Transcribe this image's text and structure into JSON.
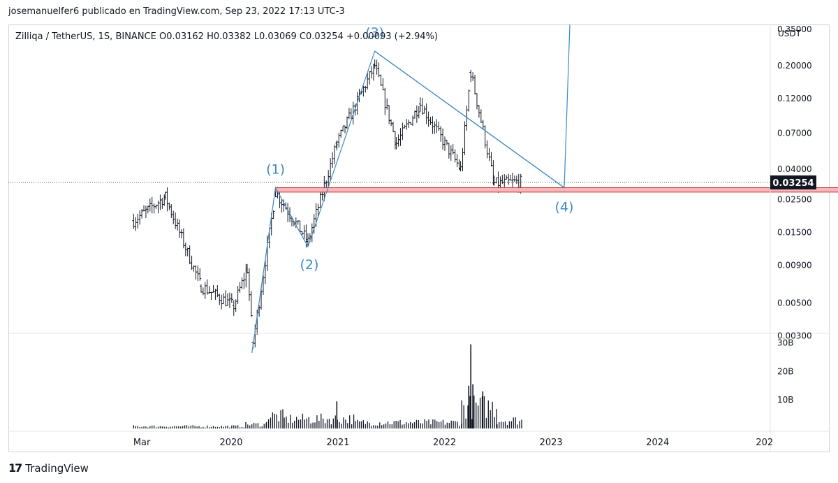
{
  "header": {
    "text": "josemanuelfer6 publicado en TradingView.com, Sep 23, 2022 17:13 UTC-3"
  },
  "footer": {
    "brand": "TradingView",
    "logo_icon": "tradingview-logo-icon"
  },
  "chart_data": {
    "type": "candlestick",
    "symbol_line": "Zilliqa / TetherUS, 1S, BINANCE  O0.03162  H0.03382  L0.03069  C0.03254  +0.00093 (+2.94%)",
    "ohlc": {
      "open": 0.03162,
      "high": 0.03382,
      "low": 0.03069,
      "close": 0.03254,
      "change": "+0.00093 (+2.94%)"
    },
    "currency": "USDT",
    "y_scale": "log",
    "y_ticks": [
      "0.35000",
      "0.20000",
      "0.12000",
      "0.07000",
      "0.04000",
      "0.02500",
      "0.01500",
      "0.00900",
      "0.00500",
      "0.00300"
    ],
    "last_price": "0.03254",
    "x_ticks": [
      "Mar",
      "2020",
      "2021",
      "2022",
      "2023",
      "2024",
      "202"
    ],
    "volume_ticks": [
      "30B",
      "20B",
      "10B"
    ],
    "wave_labels": [
      "(1)",
      "(2)",
      "(3)",
      "(4)"
    ],
    "wave_points": [
      {
        "label": "start",
        "date": "2020-03-12",
        "price": 0.0023
      },
      {
        "label": "(1)",
        "date": "2020-06-01",
        "price": 0.03
      },
      {
        "label": "(2)",
        "date": "2020-09-20",
        "price": 0.012
      },
      {
        "label": "(3)",
        "date": "2021-05-07",
        "price": 0.25
      },
      {
        "label": "(4)",
        "date": "2023-02-15",
        "price": 0.03
      }
    ],
    "support_zone": {
      "from": "2020-06-01",
      "to": "2025-09-15",
      "high": 0.03,
      "low": 0.028
    },
    "colors": {
      "line": "#3d89c3",
      "label": "#3d89c3",
      "zone_fill": "#f7b5bd",
      "zone_border": "#c0392b",
      "candle": "#131722"
    },
    "candle_ranges": [
      {
        "from": "2019-02-01",
        "to": "2019-05-20",
        "start": 0.018,
        "end": 0.026
      },
      {
        "from": "2019-05-20",
        "to": "2019-09-20",
        "start": 0.026,
        "end": 0.0065
      },
      {
        "from": "2019-09-20",
        "to": "2020-01-10",
        "start": 0.0065,
        "end": 0.0048
      },
      {
        "from": "2020-01-10",
        "to": "2020-02-25",
        "start": 0.0048,
        "end": 0.0085
      },
      {
        "from": "2020-02-25",
        "to": "2020-03-16",
        "start": 0.0085,
        "end": 0.0027
      },
      {
        "from": "2020-03-16",
        "to": "2020-06-01",
        "start": 0.0027,
        "end": 0.028
      },
      {
        "from": "2020-06-01",
        "to": "2020-09-20",
        "start": 0.028,
        "end": 0.013
      },
      {
        "from": "2020-09-20",
        "to": "2020-12-28",
        "start": 0.013,
        "end": 0.06
      },
      {
        "from": "2020-12-28",
        "to": "2021-05-07",
        "start": 0.06,
        "end": 0.2
      },
      {
        "from": "2021-05-07",
        "to": "2021-07-20",
        "start": 0.2,
        "end": 0.06
      },
      {
        "from": "2021-07-20",
        "to": "2021-10-10",
        "start": 0.06,
        "end": 0.11
      },
      {
        "from": "2021-10-10",
        "to": "2022-02-25",
        "start": 0.11,
        "end": 0.04
      },
      {
        "from": "2022-02-25",
        "to": "2022-04-01",
        "start": 0.04,
        "end": 0.18
      },
      {
        "from": "2022-04-01",
        "to": "2022-06-20",
        "start": 0.18,
        "end": 0.032
      },
      {
        "from": "2022-06-20",
        "to": "2022-09-20",
        "start": 0.032,
        "end": 0.033
      }
    ],
    "volume_ranges": [
      {
        "from": "2019-02-01",
        "to": "2020-02-20",
        "value": 0.8
      },
      {
        "from": "2020-02-20",
        "to": "2020-05-01",
        "value": 1.5
      },
      {
        "from": "2020-05-01",
        "to": "2020-07-01",
        "value": 4.5
      },
      {
        "from": "2020-07-01",
        "to": "2021-03-01",
        "value": 3.5
      },
      {
        "from": "2021-03-01",
        "to": "2022-03-01",
        "value": 2.2
      },
      {
        "from": "2022-03-01",
        "to": "2022-06-30",
        "value": 8.0
      },
      {
        "from": "2022-06-30",
        "to": "2022-09-23",
        "value": 3.0
      }
    ],
    "volume_spikes": [
      {
        "date": "2020-12-28",
        "value": 9.5
      },
      {
        "date": "2022-04-01",
        "value": 29.5
      },
      {
        "date": "2022-03-25",
        "value": 15
      },
      {
        "date": "2022-04-08",
        "value": 15.5
      },
      {
        "date": "2022-05-12",
        "value": 13
      }
    ]
  }
}
